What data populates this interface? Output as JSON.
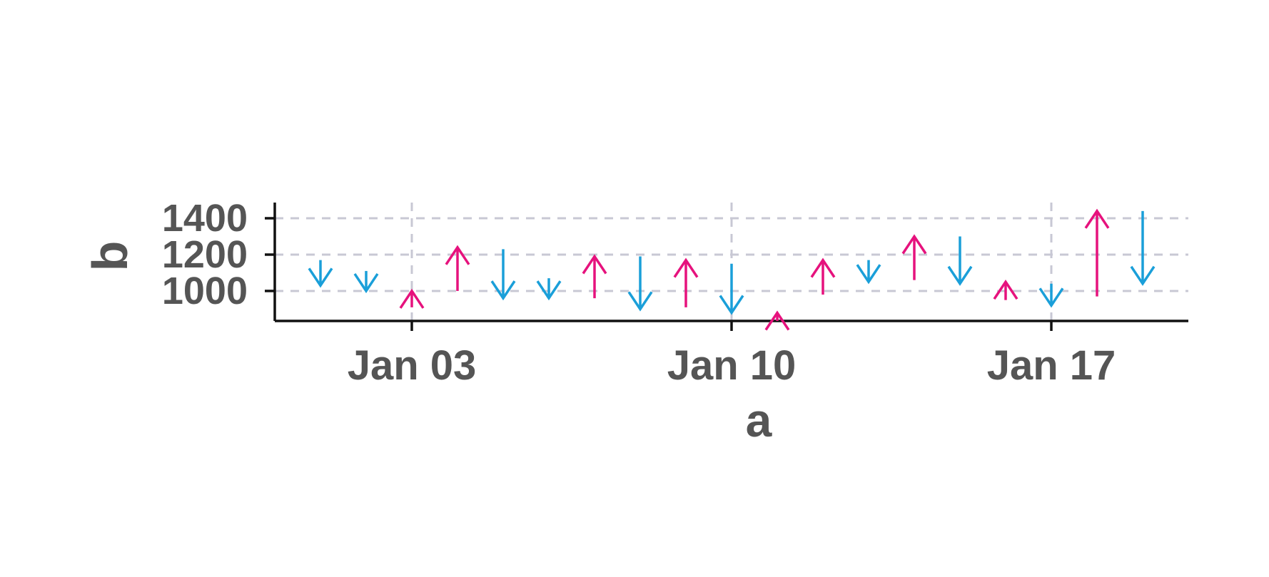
{
  "chart_data": {
    "type": "arrow",
    "xlabel": "a",
    "ylabel": "b",
    "x_ticks": [
      "Jan 03",
      "Jan 10",
      "Jan 17"
    ],
    "y_ticks": [
      "1000",
      "1200",
      "1400"
    ],
    "xlim": [
      "2024-12-31",
      "2025-01-20"
    ],
    "ylim": [
      835,
      1455
    ],
    "grid": true,
    "legend": "none",
    "colors": {
      "up": "#e6127d",
      "down": "#1a9fd9",
      "axis": "#111111",
      "grid": "#c8c8d4",
      "text": "#555555"
    },
    "points": [
      {
        "date": "2025-01-01",
        "open": 1170,
        "close": 1030
      },
      {
        "date": "2025-01-02",
        "open": 1110,
        "close": 1000
      },
      {
        "date": "2025-01-03",
        "open": 910,
        "close": 1000
      },
      {
        "date": "2025-01-04",
        "open": 1000,
        "close": 1240
      },
      {
        "date": "2025-01-05",
        "open": 1230,
        "close": 960
      },
      {
        "date": "2025-01-06",
        "open": 1070,
        "close": 960
      },
      {
        "date": "2025-01-07",
        "open": 960,
        "close": 1190
      },
      {
        "date": "2025-01-08",
        "open": 1190,
        "close": 900
      },
      {
        "date": "2025-01-09",
        "open": 910,
        "close": 1170
      },
      {
        "date": "2025-01-10",
        "open": 1150,
        "close": 880
      },
      {
        "date": "2025-01-11",
        "open": 835,
        "close": 880
      },
      {
        "date": "2025-01-12",
        "open": 980,
        "close": 1170
      },
      {
        "date": "2025-01-13",
        "open": 1170,
        "close": 1050
      },
      {
        "date": "2025-01-14",
        "open": 1060,
        "close": 1300
      },
      {
        "date": "2025-01-15",
        "open": 1300,
        "close": 1040
      },
      {
        "date": "2025-01-16",
        "open": 950,
        "close": 1050
      },
      {
        "date": "2025-01-17",
        "open": 1040,
        "close": 920
      },
      {
        "date": "2025-01-18",
        "open": 970,
        "close": 1440
      },
      {
        "date": "2025-01-19",
        "open": 1440,
        "close": 1040
      }
    ]
  }
}
